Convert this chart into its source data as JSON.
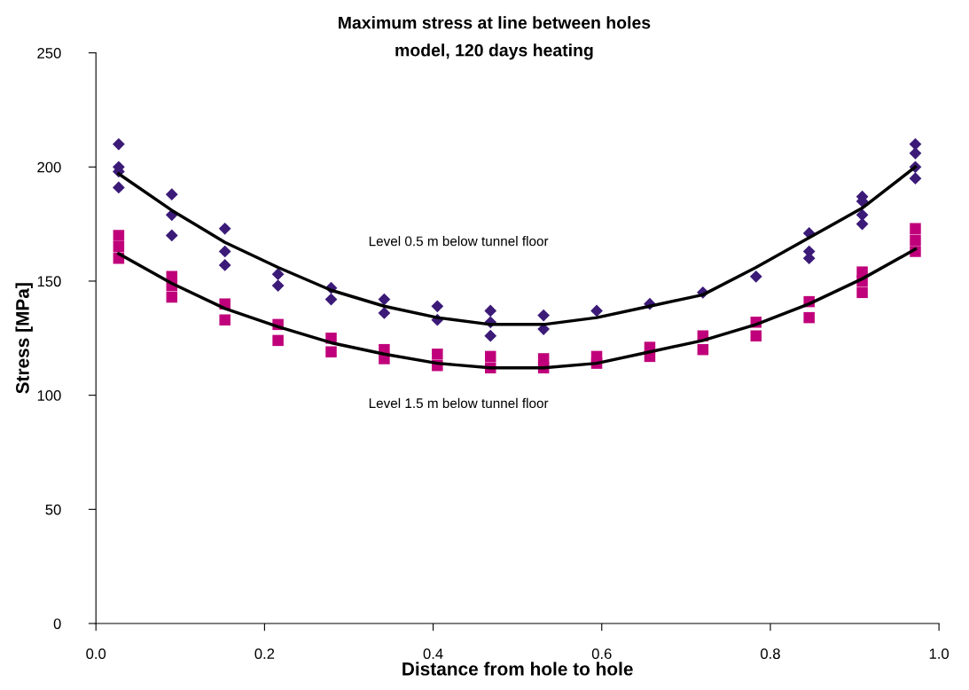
{
  "chart_data": {
    "type": "scatter",
    "title": "Maximum stress at line between holes",
    "subtitle": "model, 120 days heating",
    "xlabel": "Distance from hole to hole",
    "ylabel": "Stress [MPa]",
    "xlim": [
      0,
      1
    ],
    "xticks": [
      {
        "value": 0,
        "label": "0.0"
      },
      {
        "value": 0.2,
        "label": "0.2"
      },
      {
        "value": 0.4,
        "label": "0.4"
      },
      {
        "value": 0.6,
        "label": "0.6"
      },
      {
        "value": 0.8,
        "label": "0.8"
      },
      {
        "value": 1,
        "label": "1.0"
      }
    ],
    "ylim": [
      0,
      250
    ],
    "yticks": [
      0,
      50,
      100,
      150,
      200,
      250
    ],
    "grid": false,
    "legend": false,
    "series": [
      {
        "marker": "diamond",
        "color": "#3b1a78",
        "x": [
          0.027,
          0.027,
          0.027,
          0.027,
          0.09,
          0.09,
          0.09,
          0.153,
          0.153,
          0.153,
          0.216,
          0.216,
          0.279,
          0.279,
          0.342,
          0.342,
          0.405,
          0.405,
          0.468,
          0.468,
          0.468,
          0.531,
          0.531,
          0.594,
          0.657,
          0.72,
          0.783,
          0.846,
          0.846,
          0.846,
          0.909,
          0.909,
          0.909,
          0.909,
          0.972,
          0.972,
          0.972,
          0.972
        ],
        "values": [
          210,
          200,
          198,
          191,
          188,
          179,
          170,
          173,
          163,
          157,
          153,
          148,
          147,
          142,
          142,
          136,
          139,
          133,
          137,
          132,
          126,
          135,
          129,
          137,
          140,
          145,
          152,
          171,
          163,
          160,
          187,
          185,
          179,
          175,
          210,
          206,
          200,
          195
        ]
      },
      {
        "marker": "square",
        "color": "#c0007a",
        "x": [
          0.027,
          0.027,
          0.027,
          0.09,
          0.09,
          0.09,
          0.153,
          0.153,
          0.216,
          0.216,
          0.279,
          0.279,
          0.342,
          0.342,
          0.405,
          0.405,
          0.468,
          0.468,
          0.531,
          0.531,
          0.594,
          0.594,
          0.657,
          0.657,
          0.72,
          0.72,
          0.783,
          0.783,
          0.846,
          0.846,
          0.909,
          0.909,
          0.909,
          0.972,
          0.972,
          0.972
        ],
        "values": [
          170,
          165,
          160,
          152,
          148,
          143,
          140,
          133,
          131,
          124,
          125,
          119,
          120,
          116,
          118,
          113,
          117,
          112,
          116,
          112,
          117,
          114,
          121,
          117,
          126,
          120,
          132,
          126,
          141,
          134,
          154,
          150,
          145,
          173,
          168,
          163
        ]
      },
      {
        "type": "line",
        "color": "#000000",
        "x": [
          0.027,
          0.09,
          0.153,
          0.216,
          0.279,
          0.342,
          0.405,
          0.468,
          0.531,
          0.594,
          0.657,
          0.72,
          0.783,
          0.846,
          0.909,
          0.972
        ],
        "values": [
          197,
          181,
          167,
          156,
          146,
          139,
          134,
          131,
          131,
          134,
          139,
          144,
          156,
          169,
          182,
          200
        ]
      },
      {
        "type": "line",
        "color": "#000000",
        "x": [
          0.027,
          0.09,
          0.153,
          0.216,
          0.279,
          0.342,
          0.405,
          0.468,
          0.531,
          0.594,
          0.657,
          0.72,
          0.783,
          0.846,
          0.909,
          0.972
        ],
        "values": [
          162,
          149,
          138,
          130,
          123,
          118,
          114,
          112,
          112,
          114,
          119,
          124,
          131,
          140,
          151,
          164
        ]
      }
    ],
    "annotations": [
      "Level 0.5 m below tunnel floor",
      "Level 1.5 m below tunnel floor"
    ]
  }
}
